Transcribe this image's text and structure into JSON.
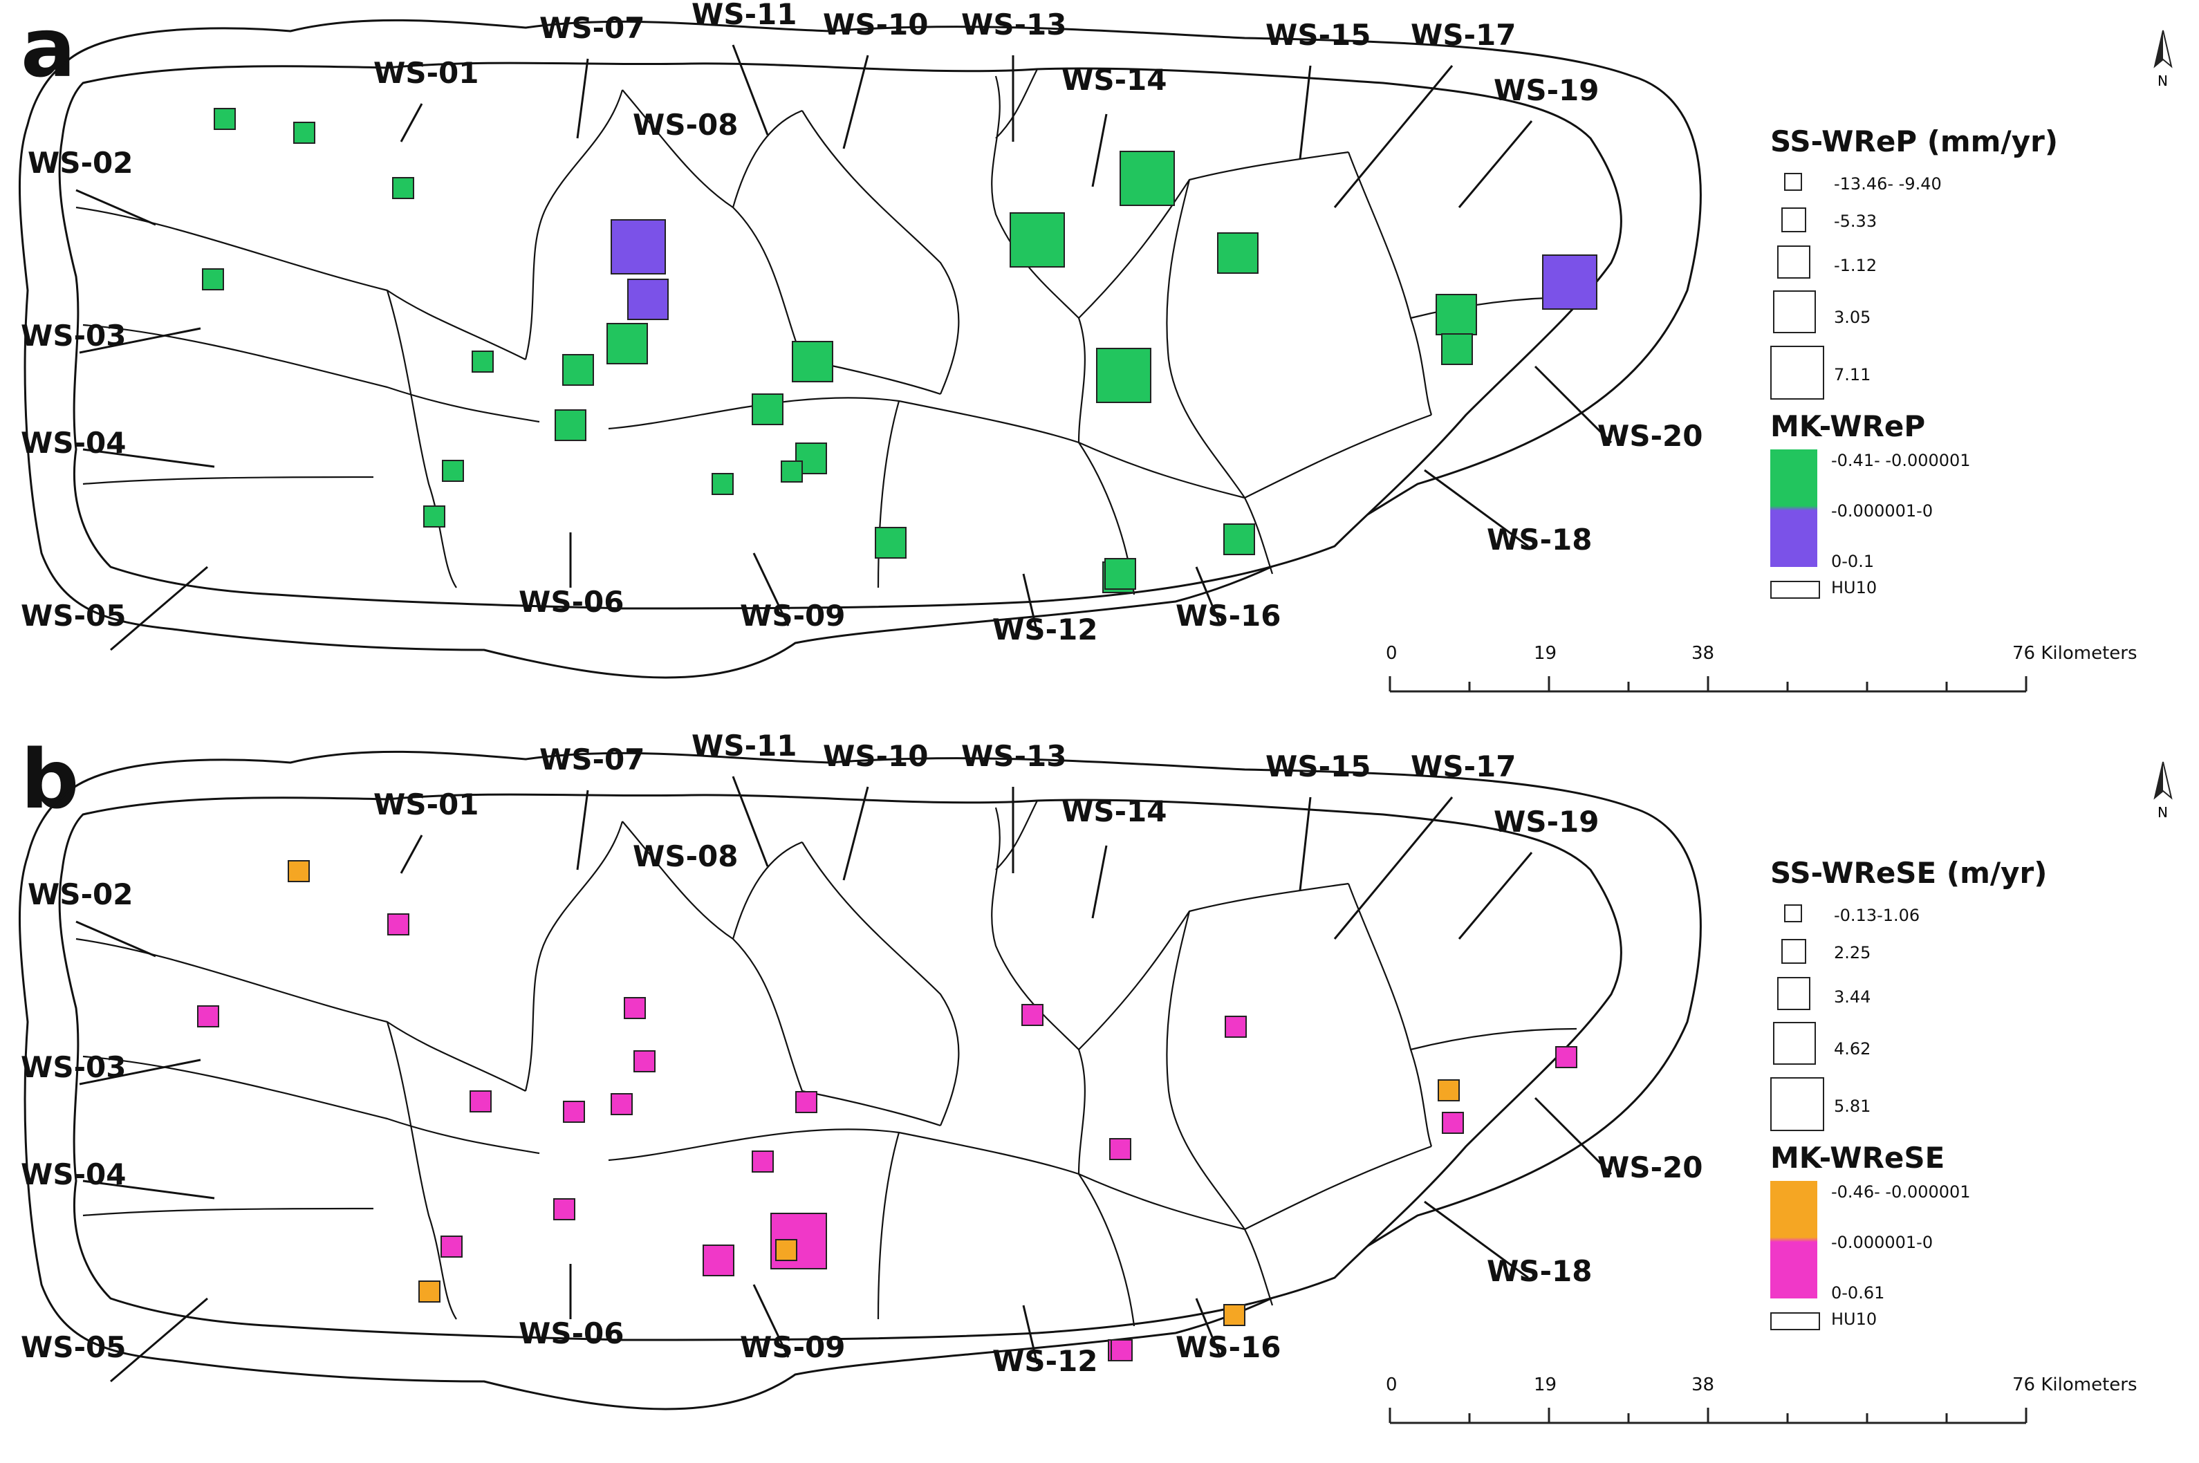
{
  "panels": [
    {
      "letter": "a",
      "size_title": "SS-WReP (mm/yr)",
      "size_classes": [
        "-13.46- -9.40",
        "-5.33",
        "-1.12",
        "3.05",
        "7.11"
      ],
      "mk_title": "MK-WReP",
      "mk_classes": [
        "-0.41- -0.000001",
        "-0.000001-0",
        "0-0.1"
      ],
      "mk_colors": [
        "#22c55e",
        "#7b52e8"
      ],
      "hu_label": "HU10",
      "scale": {
        "ticks": [
          "0",
          "19",
          "38",
          "76 Kilometers"
        ]
      },
      "north": "N",
      "markers": [
        {
          "c": "g",
          "s": 1
        },
        {
          "c": "g",
          "s": 1
        },
        {
          "c": "g",
          "s": 1
        },
        {
          "c": "g",
          "s": 1
        },
        {
          "c": "p",
          "s": 4
        },
        {
          "c": "p",
          "s": 3
        },
        {
          "c": "g",
          "s": 3
        },
        {
          "c": "g",
          "s": 1
        },
        {
          "c": "g",
          "s": 2
        },
        {
          "c": "g",
          "s": 3
        },
        {
          "c": "g",
          "s": 2
        },
        {
          "c": "g",
          "s": 2
        },
        {
          "c": "g",
          "s": 1
        },
        {
          "c": "g",
          "s": 1
        },
        {
          "c": "g",
          "s": 1
        },
        {
          "c": "g",
          "s": 1
        },
        {
          "c": "g",
          "s": 2
        },
        {
          "c": "g",
          "s": 2
        },
        {
          "c": "g",
          "s": 4
        },
        {
          "c": "g",
          "s": 4
        },
        {
          "c": "g",
          "s": 4
        },
        {
          "c": "g",
          "s": 3
        },
        {
          "c": "g",
          "s": 3
        },
        {
          "c": "g",
          "s": 2
        },
        {
          "c": "p",
          "s": 4
        },
        {
          "c": "g",
          "s": 2
        },
        {
          "c": "g",
          "s": 2
        },
        {
          "c": "g",
          "s": 2
        }
      ]
    },
    {
      "letter": "b",
      "size_title": "SS-WReSE (m/yr)",
      "size_classes": [
        "-0.13-1.06",
        "2.25",
        "3.44",
        "4.62",
        "5.81"
      ],
      "mk_title": "MK-WReSE",
      "mk_classes": [
        "-0.46- -0.000001",
        "-0.000001-0",
        "0-0.61"
      ],
      "mk_colors": [
        "#f5a623",
        "#f038c8"
      ],
      "hu_label": "HU10",
      "scale": {
        "ticks": [
          "0",
          "19",
          "38",
          "76 Kilometers"
        ]
      },
      "north": "N",
      "markers": [
        {
          "c": "o",
          "s": 1
        },
        {
          "c": "m",
          "s": 1
        },
        {
          "c": "m",
          "s": 1
        },
        {
          "c": "m",
          "s": 1
        },
        {
          "c": "m",
          "s": 1
        },
        {
          "c": "m",
          "s": 1
        },
        {
          "c": "m",
          "s": 1
        },
        {
          "c": "m",
          "s": 1
        },
        {
          "c": "m",
          "s": 1
        },
        {
          "c": "m",
          "s": 1
        },
        {
          "c": "m",
          "s": 1
        },
        {
          "c": "o",
          "s": 1
        },
        {
          "c": "m",
          "s": 2
        },
        {
          "c": "m",
          "s": 5
        },
        {
          "c": "o",
          "s": 1
        },
        {
          "c": "m",
          "s": 1
        },
        {
          "c": "m",
          "s": 1
        },
        {
          "c": "m",
          "s": 1
        },
        {
          "c": "m",
          "s": 1
        },
        {
          "c": "m",
          "s": 1
        },
        {
          "c": "o",
          "s": 1
        },
        {
          "c": "m",
          "s": 1
        },
        {
          "c": "o",
          "s": 1
        },
        {
          "c": "m",
          "s": 1
        },
        {
          "c": "m",
          "s": 1
        }
      ]
    }
  ],
  "watersheds": [
    "WS-01",
    "WS-02",
    "WS-03",
    "WS-04",
    "WS-05",
    "WS-06",
    "WS-07",
    "WS-08",
    "WS-09",
    "WS-10",
    "WS-11",
    "WS-12",
    "WS-13",
    "WS-14",
    "WS-15",
    "WS-16",
    "WS-17",
    "WS-18",
    "WS-19",
    "WS-20"
  ]
}
